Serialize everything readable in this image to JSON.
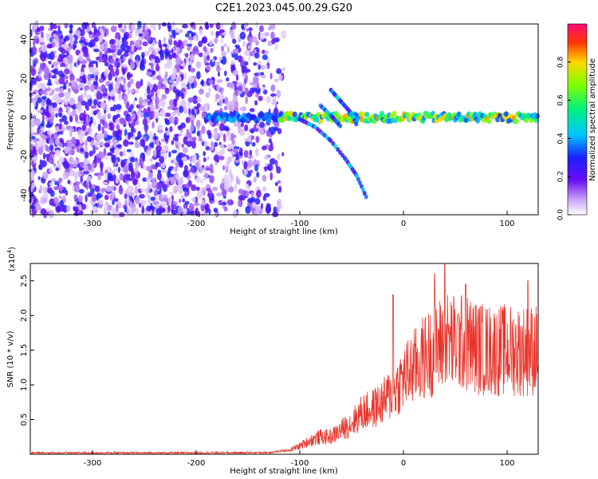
{
  "title": "C2E1.2023.045.00.29.G20",
  "chart_data": [
    {
      "type": "heatmap",
      "xlabel": "Height of straight line (km)",
      "ylabel": "Frequency (Hz)",
      "xlim": [
        -360,
        130
      ],
      "ylim": [
        -50,
        48
      ],
      "xticks": [
        -300,
        -200,
        -100,
        0,
        100
      ],
      "yticks": [
        -40,
        -20,
        0,
        20,
        40
      ],
      "colorbar": {
        "label": "Normalized spectral amplitude",
        "range": [
          0,
          1
        ],
        "ticks": [
          0.0,
          0.2,
          0.4,
          0.6,
          0.8
        ],
        "colormap": "rainbow (violet-blue-cyan-green-yellow-red-magenta)"
      },
      "features": [
        {
          "description": "scattered noise",
          "x_range": [
            -360,
            -115
          ],
          "freq_range": [
            -50,
            48
          ]
        },
        {
          "description": "signal trace",
          "x_range": [
            -190,
            130
          ],
          "freq": 0
        },
        {
          "description": "diverging traces",
          "x_range": [
            -100,
            -30
          ],
          "freq_range": [
            -42,
            14
          ]
        }
      ]
    },
    {
      "type": "line",
      "xlabel": "Height of straight line (km)",
      "ylabel": "SNR (10 * v/v)",
      "yscale_note": "(x10",
      "yscale_exp": "4",
      "yscale_close": ")",
      "xlim": [
        -360,
        130
      ],
      "ylim": [
        0,
        27500
      ],
      "xticks": [
        -300,
        -200,
        -100,
        0,
        100
      ],
      "yticks": [
        5000,
        10000,
        15000,
        20000,
        25000
      ],
      "ytick_labels": [
        "0.5",
        "1.0",
        "1.5",
        "2.0",
        "2.5"
      ],
      "color": "#e8342a",
      "series": [
        {
          "x": [
            -360,
            -300,
            -200,
            -130,
            -110,
            -100,
            -90,
            -80,
            -70,
            -60,
            -50,
            -40,
            -30,
            -20,
            -10,
            0,
            10,
            20,
            30,
            40,
            50,
            60,
            70,
            80,
            90,
            100,
            110,
            120,
            130
          ],
          "values": [
            200,
            200,
            200,
            250,
            600,
            1200,
            2000,
            2500,
            2500,
            3500,
            4500,
            6000,
            6500,
            7500,
            9000,
            11000,
            12500,
            14000,
            15000,
            16500,
            16000,
            16000,
            15500,
            15000,
            15000,
            15000,
            15000,
            15000,
            15000
          ],
          "peaks": [
            [
              -10,
              23000
            ],
            [
              30,
              26000
            ],
            [
              40,
              27500
            ],
            [
              60,
              24500
            ],
            [
              120,
              25000
            ]
          ]
        }
      ]
    }
  ]
}
